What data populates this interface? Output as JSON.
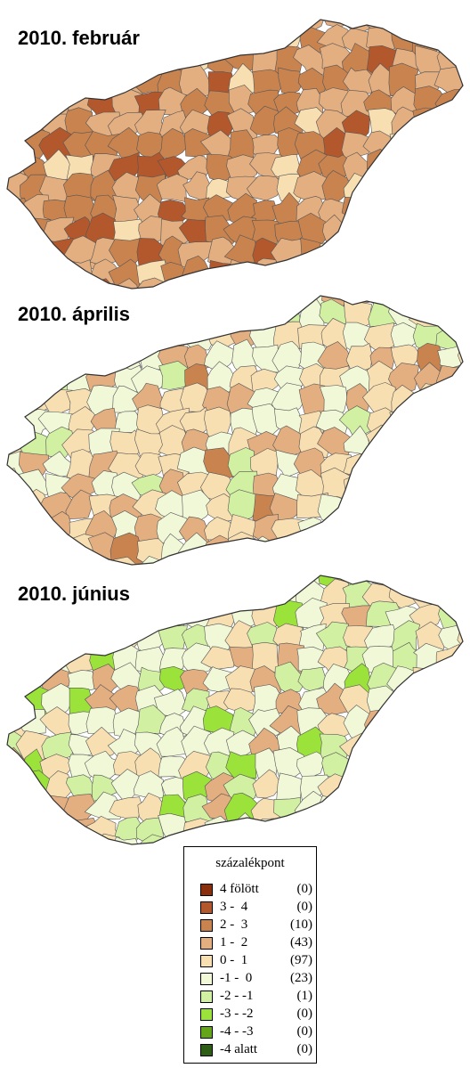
{
  "maps": [
    {
      "title": "2010. február",
      "tone": "brown"
    },
    {
      "title": "2010. április",
      "tone": "mixed"
    },
    {
      "title": "2010. június",
      "tone": "green"
    }
  ],
  "legend": {
    "title": "százalékpont",
    "classes": [
      {
        "range": "4 fölött",
        "count": "(0)",
        "color": "#8b2e0b"
      },
      {
        "range": "3 -  4",
        "count": "(0)",
        "color": "#b2582c"
      },
      {
        "range": "2 -  3",
        "count": "(10)",
        "color": "#c8834f"
      },
      {
        "range": "1 -  2",
        "count": "(43)",
        "color": "#e3ae80"
      },
      {
        "range": "0 -  1",
        "count": "(97)",
        "color": "#f8dfb2"
      },
      {
        "range": "-1 -  0",
        "count": "(23)",
        "color": "#f0f8d8"
      },
      {
        "range": "-2 - -1",
        "count": "(1)",
        "color": "#d2f0a2"
      },
      {
        "range": "-3 - -2",
        "count": "(0)",
        "color": "#9be23a"
      },
      {
        "range": "-4 - -3",
        "count": "(0)",
        "color": "#64a519"
      },
      {
        "range": "-4 alatt",
        "count": "(0)",
        "color": "#2e5e15"
      }
    ]
  }
}
